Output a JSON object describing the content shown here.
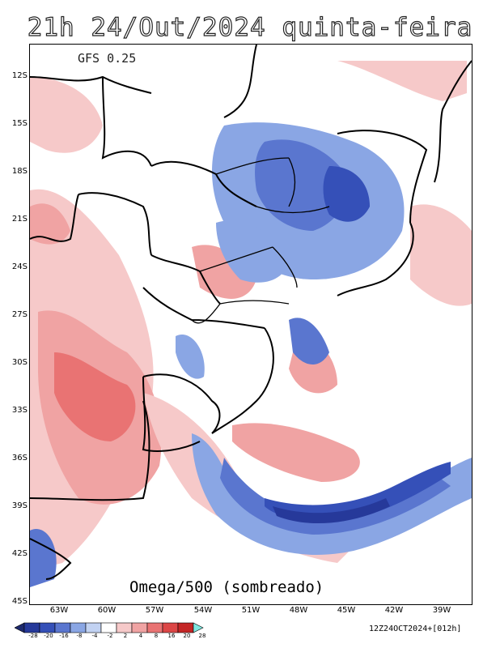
{
  "header": {
    "title": "21h 24/Out/2024 quinta-feira",
    "model": "GFS 0.25",
    "field_label": "Omega/500 (sombreado)",
    "run_info": "12Z24OCT2024+[012h]"
  },
  "axes": {
    "lat_labels": [
      "12S",
      "15S",
      "18S",
      "21S",
      "24S",
      "27S",
      "30S",
      "33S",
      "36S",
      "39S",
      "42S",
      "45S"
    ],
    "lon_labels": [
      "63W",
      "60W",
      "57W",
      "54W",
      "51W",
      "48W",
      "45W",
      "42W",
      "39W"
    ]
  },
  "colorbar": {
    "levels": [
      "-28",
      "-20",
      "-16",
      "-8",
      "-4",
      "-2",
      "2",
      "4",
      "8",
      "16",
      "20",
      "28"
    ],
    "colors": [
      "#1e2a6e",
      "#26399a",
      "#3550b8",
      "#5a76cf",
      "#8aa6e4",
      "#c2d2f2",
      "#ffffff",
      "#f6c9c9",
      "#f0a3a3",
      "#e97373",
      "#dc4646",
      "#c42626",
      "#7ee7e0"
    ]
  }
}
